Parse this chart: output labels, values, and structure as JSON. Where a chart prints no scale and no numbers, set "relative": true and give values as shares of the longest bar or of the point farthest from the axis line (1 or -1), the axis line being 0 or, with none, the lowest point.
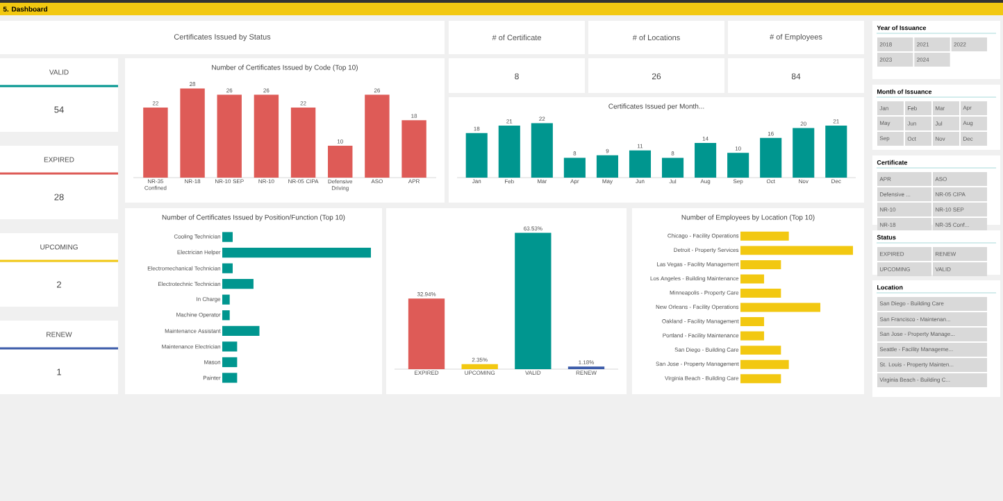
{
  "chart_data": [
    {
      "type": "other",
      "title": "Certificates Issued by Status",
      "annotations": [
        "5. Dashboard"
      ],
      "categories": [
        "VALID",
        "EXPIRED",
        "UPCOMING",
        "RENEW"
      ],
      "values": [
        54,
        28,
        2,
        1
      ],
      "data_labels": true
    },
    {
      "type": "other",
      "categories": [
        "# of Certificate",
        "# of Locations",
        "# of Employees"
      ],
      "values": [
        8,
        26,
        84
      ],
      "data_labels": true
    },
    {
      "type": "bar",
      "title": "Number of Certificates Issued by Code (Top 10)",
      "categories": [
        "NR-35 Confined",
        "NR-18",
        "NR-10 SEP",
        "NR-10",
        "NR-05 CIPA",
        "Defensive Driving",
        "ASO",
        "APR"
      ],
      "values": [
        22,
        28,
        26,
        26,
        22,
        10,
        26,
        18
      ],
      "color": "#de5b57",
      "data_labels": true
    },
    {
      "type": "bar",
      "title": "Certificates Issued per Month...",
      "categories": [
        "Jan",
        "Feb",
        "Mar",
        "Apr",
        "May",
        "Jun",
        "Jul",
        "Aug",
        "Sep",
        "Oct",
        "Nov",
        "Dec"
      ],
      "values": [
        18,
        21,
        22,
        8,
        9,
        11,
        8,
        14,
        10,
        16,
        20,
        21
      ],
      "color": "#00968f",
      "data_labels": true
    },
    {
      "type": "bar",
      "orientation": "horizontal",
      "relative": true,
      "title": "Number of Certificates Issued by Position/Function (Top 10)",
      "categories": [
        "Cooling Technician",
        "Electrician Helper",
        "Electromechanical Technician",
        "Electrotechnic Technician",
        "In Charge",
        "Machine Operator",
        "Maintenance Assistant",
        "Maintenance Electrician",
        "Mason",
        "Painter"
      ],
      "values": [
        0.07,
        1,
        0.07,
        0.21,
        0.05,
        0.05,
        0.25,
        0.1,
        0.1,
        0.1
      ],
      "color": "#00968f"
    },
    {
      "type": "bar",
      "categories": [
        "EXPIRED",
        "UPCOMING",
        "VALID",
        "RENEW"
      ],
      "values": [
        32.94,
        2.35,
        63.53,
        1.18
      ],
      "value_labels": [
        "32.94%",
        "2.35%",
        "63.53%",
        "1.18%"
      ],
      "colors": [
        "#de5b57",
        "#f2c811",
        "#00968f",
        "#3b5ba9"
      ]
    },
    {
      "type": "bar",
      "orientation": "horizontal",
      "relative": true,
      "title": "Number of Employees by Location (Top 10)",
      "categories": [
        "Chicago - Facility Operations",
        "Detroit - Property Services",
        "Las Vegas - Facility Management",
        "Los Angeles - Building Maintenance",
        "Minneapolis - Property Care",
        "New Orleans - Facility Operations",
        "Oakland - Facility Management",
        "Portland - Facility Maintenance",
        "San Diego - Building Care",
        "San Jose - Property Management",
        "Virginia Beach - Building Care"
      ],
      "values": [
        0.43,
        1,
        0.36,
        0.21,
        0.36,
        0.71,
        0.21,
        0.21,
        0.36,
        0.43,
        0.36
      ],
      "color": "#f2c811"
    },
    {
      "type": "other",
      "title": "Year of Issuance",
      "categories": [
        "2018",
        "2021",
        "2022",
        "2023",
        "2024"
      ]
    },
    {
      "type": "other",
      "title": "Month of Issuance",
      "categories": [
        "Jan",
        "Feb",
        "Mar",
        "Apr",
        "May",
        "Jun",
        "Jul",
        "Aug",
        "Sep",
        "Oct",
        "Nov",
        "Dec"
      ]
    },
    {
      "type": "other",
      "title": "Certificate",
      "categories": [
        "APR",
        "ASO",
        "Defensive ...",
        "NR-05 CIPA",
        "NR-10",
        "NR-10 SEP",
        "NR-18",
        "NR-35 Conf..."
      ]
    },
    {
      "type": "other",
      "title": "Status",
      "categories": [
        "EXPIRED",
        "RENEW",
        "UPCOMING",
        "VALID"
      ]
    },
    {
      "type": "other",
      "title": "Location",
      "categories": [
        "San Diego - Building Care",
        "San Francisco - Maintenan...",
        "San Jose - Property Manage...",
        "Seattle - Facility Manageme...",
        "St. Louis - Property Mainten...",
        "Virginia Beach - Building C..."
      ]
    }
  ]
}
